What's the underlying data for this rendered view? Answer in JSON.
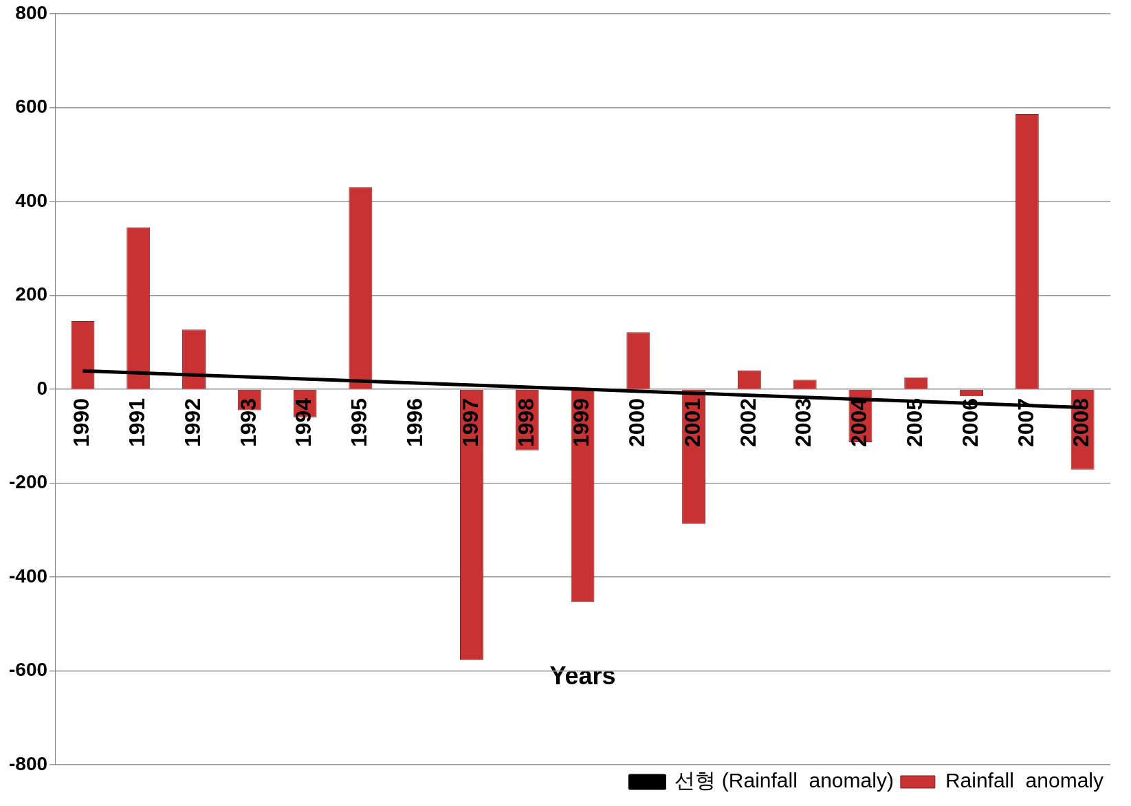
{
  "chart_data": {
    "type": "bar",
    "xlabel": "Years",
    "categories": [
      "1990",
      "1991",
      "1992",
      "1993",
      "1994",
      "1995",
      "1996",
      "1997",
      "1998",
      "1999",
      "2000",
      "2001",
      "2002",
      "2003",
      "2004",
      "2005",
      "2006",
      "2007",
      "2008"
    ],
    "series": [
      {
        "name": "Rainfall  anomaly",
        "color": "#c83232",
        "values": [
          145,
          345,
          127,
          -45,
          -60,
          430,
          0,
          -577,
          -130,
          -453,
          121,
          -287,
          40,
          20,
          -113,
          25,
          -15,
          586,
          -171
        ]
      },
      {
        "type": "line",
        "name": "선형 (Rainfall  anomaly)",
        "color": "#000000",
        "values": [
          39,
          null,
          null,
          null,
          null,
          null,
          null,
          null,
          null,
          null,
          null,
          null,
          null,
          null,
          null,
          null,
          null,
          null,
          -39
        ]
      }
    ],
    "ylim": [
      -800,
      800
    ],
    "yticks": [
      -800,
      -600,
      -400,
      -200,
      0,
      200,
      400,
      600,
      800
    ],
    "grid": "y",
    "legend": "bottom right",
    "marker": "none"
  }
}
